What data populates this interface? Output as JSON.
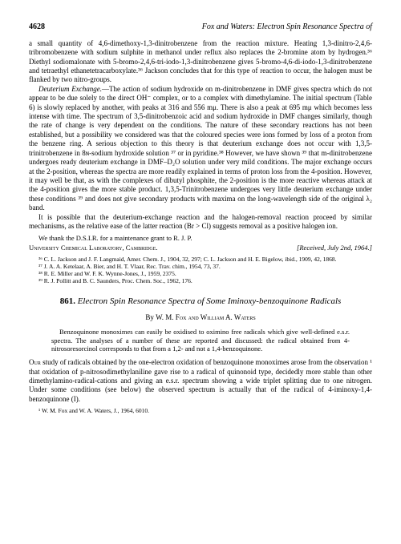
{
  "header": {
    "page_number": "4628",
    "running_title": "Fox and Waters: Electron Spin Resonance Spectra of"
  },
  "body": {
    "para1": "a small quantity of 4,6-dimethoxy-1,3-dinitrobenzene from the reaction mixture. Heating 1,3-dinitro-2,4,6-tribromobenzene with sodium sulphite in methanol under reflux also replaces the 2-bromine atom by hydrogen.³⁶ Diethyl sodiomalonate with 5-bromo-2,4,6-tri-iodo-1,3-dinitrobenzene gives 5-bromo-4,6-di-iodo-1,3-dinitrobenzene and tetraethyl ethanetetracarboxylate.³⁶ Jackson concludes that for this type of reaction to occur, the halogen must be flanked by two nitro-groups.",
    "para2_heading": "Deuterium Exchange.",
    "para2": "—The action of sodium hydroxide on m-dinitrobenzene in DMF gives spectra which do not appear to be due solely to the direct OH⁻ complex, or to a complex with dimethylamine. The initial spectrum (Table 6) is slowly replaced by another, with peaks at 316 and 556 mμ. There is also a peak at 695 mμ which becomes less intense with time. The spectrum of 3,5-dinitrobenzoic acid and sodium hydroxide in DMF changes similarly, though the rate of change is very dependent on the conditions. The nature of these secondary reactions has not been established, but a possibility we considered was that the coloured species were ions formed by loss of a proton from the benzene ring. A serious objection to this theory is that deuterium exchange does not occur with 1,3,5-trinitrobenzene in 8ɴ-sodium hydroxide solution ³⁷ or in pyridine.³⁸ However, we have shown ³⁹ that m-dinitrobenzene undergoes ready deuterium exchange in DMF–D₂O solution under very mild conditions. The major exchange occurs at the 2-position, whereas the spectra are more readily explained in terms of proton loss from the 4-position. However, it may well be that, as with the complexes of dibutyl phosphite, the 2-position is the more reactive whereas attack at the 4-position gives the more stable product. 1,3,5-Trinitrobenzene undergoes very little deuterium exchange under these conditions ³⁹ and does not give secondary products with maxima on the long-wavelength side of the original λ₂ band.",
    "para3": "It is possible that the deuterium-exchange reaction and the halogen-removal reaction proceed by similar mechanisms, as the relative ease of the latter reaction (Br > Cl) suggests removal as a positive halogen ion.",
    "ack": "We thank the D.S.I.R. for a maintenance grant to R. J. P.",
    "affil": "University Chemical Laboratory, Cambridge.",
    "received": "[Received, July 2nd, 1964.]",
    "ref36": "³⁶ C. L. Jackson and J. F. Langmaid, Amer. Chem. J., 1904, 32, 297; C. L. Jackson and H. E. Bigelow, ibid., 1909, 42, 1868.",
    "ref37": "³⁷ J. A. A. Ketelaar, A. Bier, and H. T. Vlaar, Rec. Trav. chim., 1954, 73, 37.",
    "ref38": "³⁸ R. E. Miller and W. F. K. Wynne-Jones, J., 1959, 2375.",
    "ref39": "³⁹ R. J. Pollitt and B. C. Saunders, Proc. Chem. Soc., 1962, 176."
  },
  "article": {
    "number": "861.",
    "title": "Electron Spin Resonance Spectra of Some Iminoxy-benzoquinone Radicals",
    "by": "By",
    "authors": "W. M. Fox and William A. Waters",
    "abstract": "Benzoquinone monoximes can easily be oxidised to oximino free radicals which give well-defined e.s.r. spectra. The analyses of a number of these are reported and discussed: the radical obtained from 4-nitrosoresorcinol corresponds to that from a 1,2- and not a 1,4-benzoquinone.",
    "para1_first": "Our",
    "para1": " study of radicals obtained by the one-electron oxidation of benzoquinone monoximes arose from the observation ¹ that oxidation of p-nitrosodimethylaniline gave rise to a radical of quinonoid type, decidedly more stable than other dimethylamino-radical-cations and giving an e.s.r. spectrum showing a wide triplet splitting due to one nitrogen. Under some conditions (see below) the observed spectrum is actually that of the radical of 4-iminoxy-1,4-benzoquinone (I).",
    "footnote1": "¹ W. M. Fox and W. A. Waters, J., 1964, 6010."
  }
}
